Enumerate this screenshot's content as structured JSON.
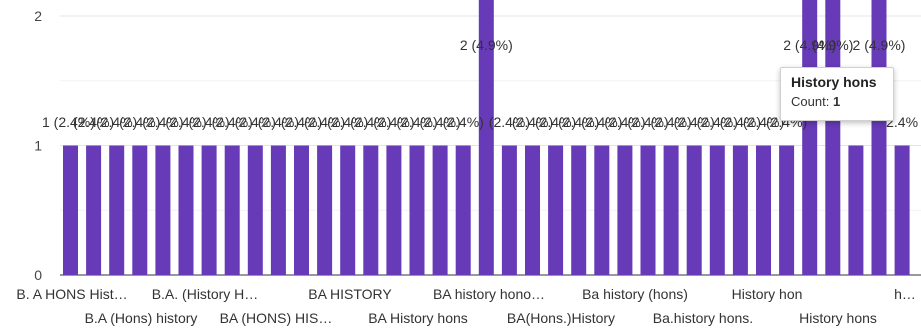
{
  "chart_data": {
    "type": "bar",
    "ylim": [
      0,
      2
    ],
    "yticks": [
      "0",
      "1",
      "2"
    ],
    "bar_color": "#673ab7",
    "grid": true,
    "values": [
      1,
      1,
      1,
      1,
      1,
      1,
      1,
      1,
      1,
      1,
      1,
      1,
      1,
      1,
      1,
      1,
      1,
      1,
      2,
      1,
      1,
      1,
      1,
      1,
      1,
      1,
      1,
      1,
      1,
      1,
      1,
      1,
      2,
      2,
      1,
      2,
      1
    ],
    "data_labels": [
      "1 (2.4%)",
      "(2.4%)",
      "(2.4%)",
      "(2.4%)",
      "(2.4%)",
      "(2.4%)",
      "(2.4%)",
      "(2.4%)",
      "(2.4%)",
      "(2.4%)",
      "(2.4%)",
      "(2.4%)",
      "(2.4%)",
      "(2.4%)",
      "(2.4%)",
      "(2.4%)",
      "(2.4%)",
      "(2.4%)",
      "2 (4.9%)",
      "(2.4%)",
      "(2.4%)",
      "(2.4%)",
      "(2.4%)",
      "(2.4%)",
      "(2.4%)",
      "(2.4%)",
      "(2.4%)",
      "(2.4%)",
      "(2.4%)",
      "(2.4%)",
      "(2.4%)",
      "(2.4%)",
      "2 (4.9%)",
      "(4.9%)",
      "",
      "2 (4.9%)",
      "2.4%"
    ],
    "x_labels_top": [
      "B. A HONS Hist…",
      "B.A. (History H…",
      "BA HISTORY",
      "BA history hono…",
      "Ba history (hons)",
      "History hon",
      "h…"
    ],
    "x_labels_bottom": [
      "B.A (Hons) history",
      "BA (HONS) HIS…",
      "BA History hons",
      "BA(Hons.)History",
      "Ba.history hons.",
      "History hons"
    ]
  },
  "tooltip": {
    "title": "History hons",
    "label": "Count:",
    "value": "1"
  }
}
